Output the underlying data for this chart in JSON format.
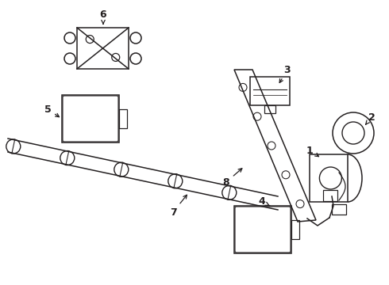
{
  "bg_color": "#ffffff",
  "line_color": "#231f20",
  "fig_width": 4.9,
  "fig_height": 3.6,
  "dpi": 100
}
